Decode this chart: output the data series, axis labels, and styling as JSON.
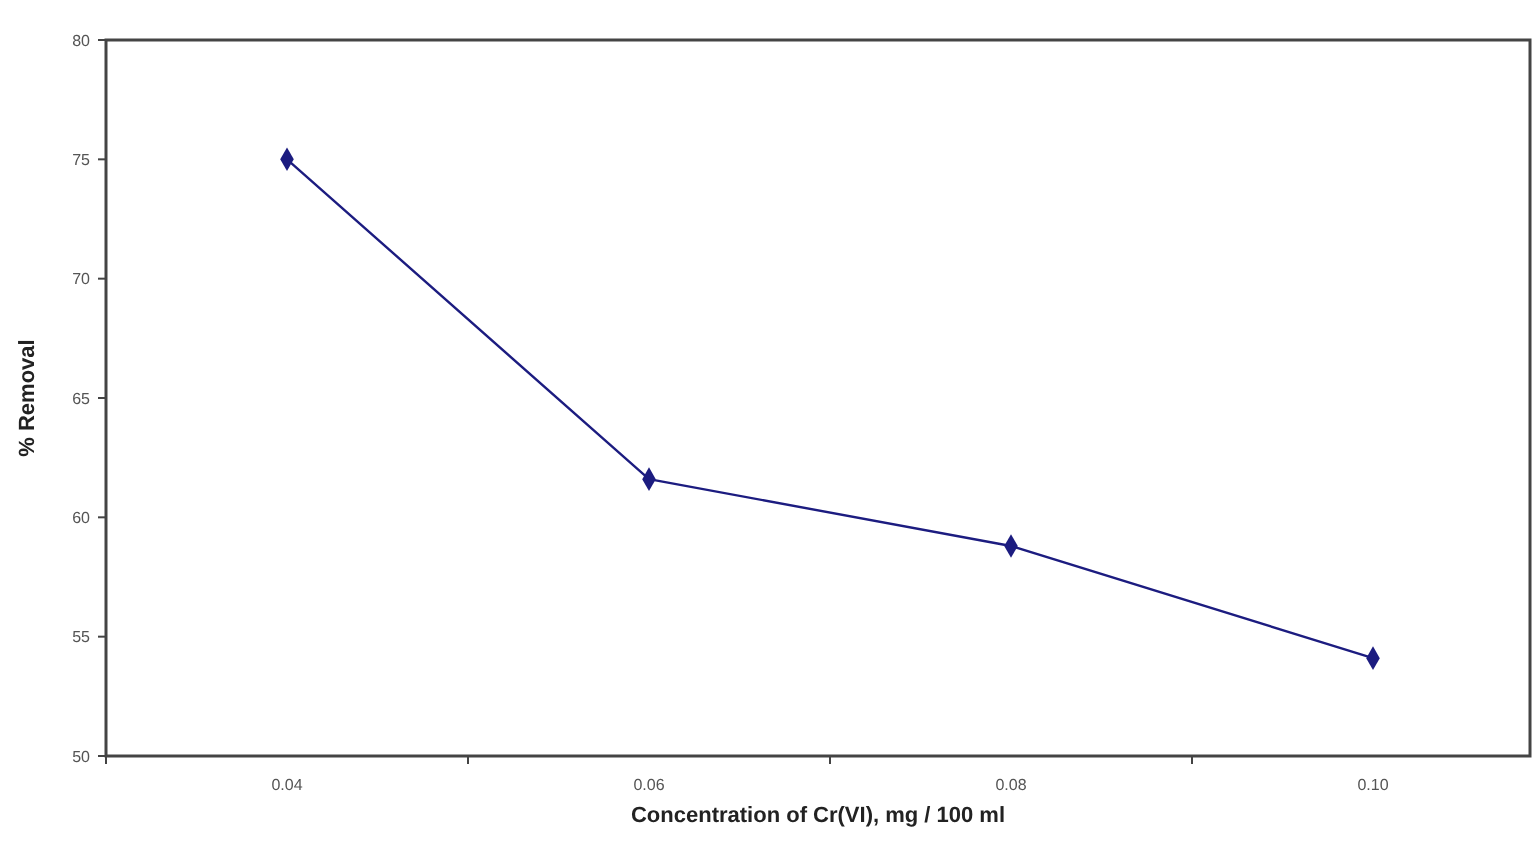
{
  "chart_data": {
    "type": "line",
    "xlabel": "Concentration of Cr(VI), mg / 100 ml",
    "ylabel": "% Removal",
    "categories": [
      "0.04",
      "0.06",
      "0.08",
      "0.10"
    ],
    "series": [
      {
        "color": "#1c1c80",
        "values": [
          75,
          61.6,
          58.8,
          54.1
        ]
      }
    ],
    "ylim": [
      50,
      80
    ],
    "yticks": [
      50,
      55,
      60,
      65,
      70,
      75,
      80
    ],
    "grid": false,
    "marker": "diamond",
    "line_style": "solid"
  }
}
